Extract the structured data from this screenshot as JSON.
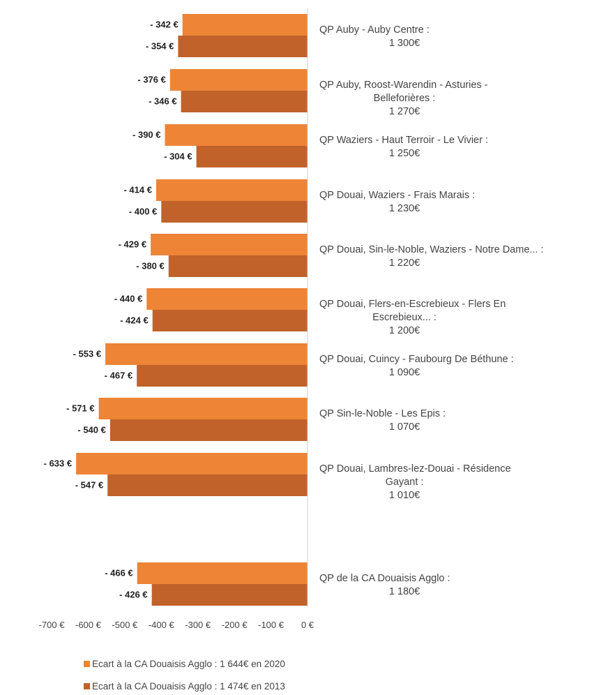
{
  "chart_data": {
    "type": "bar",
    "orientation": "horizontal",
    "categories": [
      [
        "QP Auby - Auby Centre :",
        "1 300€"
      ],
      [
        "QP Auby, Roost-Warendin - Asturies -",
        "Belleforières :",
        "1 270€"
      ],
      [
        "QP Waziers - Haut Terroir - Le Vivier :",
        "1 250€"
      ],
      [
        "QP Douai, Waziers - Frais Marais :",
        "1 230€"
      ],
      [
        "QP Douai, Sin-le-Noble, Waziers - Notre Dame... :",
        "1 220€"
      ],
      [
        "QP Douai, Flers-en-Escrebieux - Flers En",
        "Escrebieux... :",
        "1 200€"
      ],
      [
        "QP Douai, Cuincy - Faubourg De Béthune :",
        "1 090€"
      ],
      [
        "QP Sin-le-Noble - Les Epis :",
        "1 070€"
      ],
      [
        "QP Douai, Lambres-lez-Douai - Résidence",
        "Gayant :",
        "1 010€"
      ],
      [
        "QP de la CA Douaisis Agglo :",
        "1 180€"
      ]
    ],
    "series": [
      {
        "name": "Ecart à la CA Douaisis Agglo : 1 644€ en 2020",
        "color": "#ed8436",
        "values": [
          -342,
          -376,
          -390,
          -414,
          -429,
          -440,
          -553,
          -571,
          -633,
          -466
        ],
        "labels": [
          "- 342 €",
          "- 376 €",
          "- 390 €",
          "- 414 €",
          "- 429 €",
          "- 440 €",
          "- 553 €",
          "- 571 €",
          "- 633 €",
          "- 466 €"
        ]
      },
      {
        "name": "Ecart à la CA Douaisis Agglo : 1 474€ en 2013",
        "color": "#c0622a",
        "values": [
          -354,
          -346,
          -304,
          -400,
          -380,
          -424,
          -467,
          -540,
          -547,
          -426
        ],
        "labels": [
          "- 354 €",
          "- 346 €",
          "- 304 €",
          "- 400 €",
          "- 380 €",
          "- 424 €",
          "- 467 €",
          "- 540 €",
          "- 547 €",
          "- 426 €"
        ]
      }
    ],
    "xlim": [
      -700,
      0
    ],
    "xticks": [
      -700,
      -600,
      -500,
      -400,
      -300,
      -200,
      -100,
      0
    ],
    "xtick_labels": [
      "-700 €",
      "-600 €",
      "-500 €",
      "-400 €",
      "-300 €",
      "-200 €",
      "-100 €",
      "0 €"
    ],
    "title": "",
    "xlabel": "",
    "ylabel": "",
    "grid": false,
    "legend_position": "bottom-left"
  }
}
